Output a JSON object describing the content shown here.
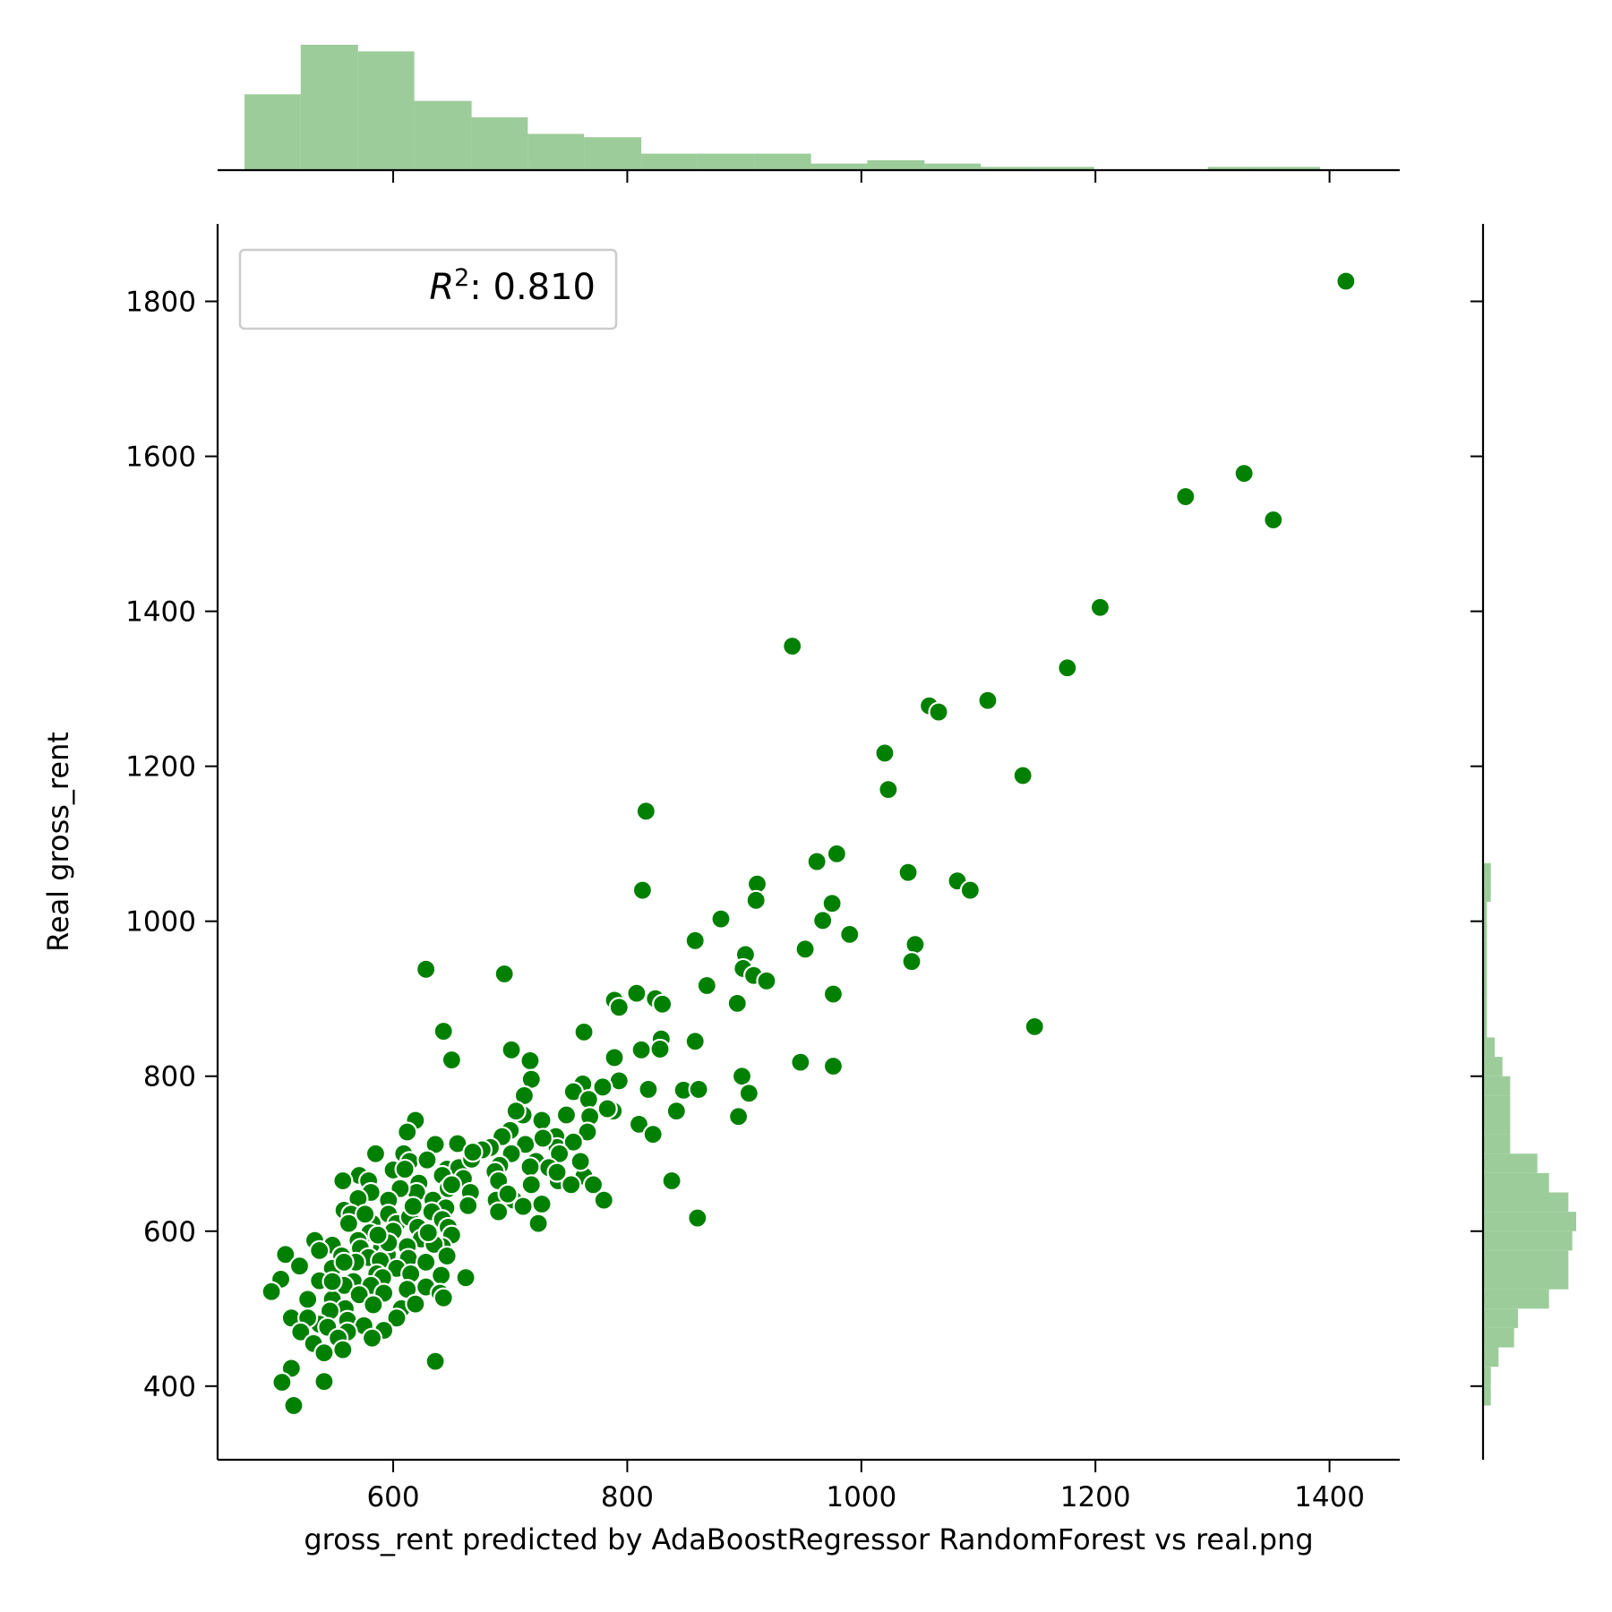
{
  "chart_data": {
    "type": "scatter",
    "style": "jointplot",
    "xlabel": "gross_rent predicted by AdaBoostRegressor RandomForest vs real.png",
    "ylabel": "Real gross_rent",
    "xlim": [
      450,
      1460
    ],
    "ylim": [
      305,
      1900
    ],
    "xticks": [
      600,
      800,
      1000,
      1200,
      1400
    ],
    "yticks": [
      400,
      600,
      800,
      1000,
      1200,
      1400,
      1600,
      1800
    ],
    "xtick_labels": [
      "600",
      "800",
      "1000",
      "1200",
      "1400"
    ],
    "ytick_labels": [
      "400",
      "600",
      "800",
      "1000",
      "1200",
      "1400",
      "1600",
      "1800"
    ],
    "legend": {
      "label_main": "R",
      "label_sup": "2",
      "label_rest": ": 0.810",
      "placement": "upper left"
    },
    "grid": false,
    "colors": {
      "points": "#008000",
      "point_edge": "#ffffff",
      "histogram": "#9ccc9a",
      "axes": "#000000"
    },
    "points": [
      [
        1414,
        1826
      ],
      [
        1327,
        1578
      ],
      [
        1352,
        1518
      ],
      [
        1277,
        1548
      ],
      [
        1204,
        1405
      ],
      [
        1176,
        1327
      ],
      [
        941,
        1355
      ],
      [
        1108,
        1285
      ],
      [
        1058,
        1278
      ],
      [
        1066,
        1270
      ],
      [
        1020,
        1217
      ],
      [
        1023,
        1170
      ],
      [
        1138,
        1188
      ],
      [
        816,
        1142
      ],
      [
        813,
        1040
      ],
      [
        979,
        1087
      ],
      [
        962,
        1077
      ],
      [
        1040,
        1063
      ],
      [
        1082,
        1052
      ],
      [
        1093,
        1040
      ],
      [
        975,
        1023
      ],
      [
        911,
        1048
      ],
      [
        910,
        1027
      ],
      [
        880,
        1003
      ],
      [
        967,
        1001
      ],
      [
        990,
        983
      ],
      [
        858,
        975
      ],
      [
        1046,
        970
      ],
      [
        952,
        964
      ],
      [
        901,
        957
      ],
      [
        1043,
        948
      ],
      [
        899,
        939
      ],
      [
        908,
        930
      ],
      [
        919,
        923
      ],
      [
        628,
        938
      ],
      [
        695,
        932
      ],
      [
        868,
        917
      ],
      [
        976,
        906
      ],
      [
        808,
        907
      ],
      [
        789,
        898
      ],
      [
        793,
        889
      ],
      [
        824,
        900
      ],
      [
        830,
        893
      ],
      [
        894,
        894
      ],
      [
        1148,
        864
      ],
      [
        643,
        858
      ],
      [
        763,
        857
      ],
      [
        829,
        848
      ],
      [
        858,
        845
      ],
      [
        812,
        834
      ],
      [
        828,
        835
      ],
      [
        701,
        834
      ],
      [
        717,
        820
      ],
      [
        650,
        821
      ],
      [
        789,
        824
      ],
      [
        948,
        818
      ],
      [
        976,
        813
      ],
      [
        718,
        796
      ],
      [
        762,
        790
      ],
      [
        793,
        794
      ],
      [
        898,
        800
      ],
      [
        818,
        783
      ],
      [
        848,
        782
      ],
      [
        861,
        783
      ],
      [
        754,
        780
      ],
      [
        779,
        786
      ],
      [
        904,
        778
      ],
      [
        712,
        775
      ],
      [
        767,
        770
      ],
      [
        788,
        755
      ],
      [
        842,
        755
      ],
      [
        895,
        748
      ],
      [
        810,
        738
      ],
      [
        822,
        725
      ],
      [
        768,
        748
      ],
      [
        748,
        750
      ],
      [
        711,
        750
      ],
      [
        705,
        755
      ],
      [
        619,
        743
      ],
      [
        727,
        743
      ],
      [
        612,
        728
      ],
      [
        739,
        722
      ],
      [
        700,
        730
      ],
      [
        713,
        712
      ],
      [
        693,
        722
      ],
      [
        636,
        712
      ],
      [
        655,
        713
      ],
      [
        683,
        708
      ],
      [
        740,
        708
      ],
      [
        766,
        728
      ],
      [
        754,
        715
      ],
      [
        742,
        700
      ],
      [
        701,
        700
      ],
      [
        609,
        700
      ],
      [
        585,
        700
      ],
      [
        614,
        690
      ],
      [
        646,
        680
      ],
      [
        656,
        682
      ],
      [
        722,
        690
      ],
      [
        691,
        685
      ],
      [
        667,
        693
      ],
      [
        629,
        692
      ],
      [
        717,
        683
      ],
      [
        600,
        679
      ],
      [
        610,
        680
      ],
      [
        571,
        672
      ],
      [
        687,
        677
      ],
      [
        733,
        682
      ],
      [
        660,
        668
      ],
      [
        642,
        672
      ],
      [
        579,
        665
      ],
      [
        557,
        665
      ],
      [
        622,
        662
      ],
      [
        647,
        655
      ],
      [
        690,
        665
      ],
      [
        741,
        665
      ],
      [
        763,
        671
      ],
      [
        771,
        660
      ],
      [
        718,
        660
      ],
      [
        620,
        650
      ],
      [
        666,
        650
      ],
      [
        581,
        650
      ],
      [
        752,
        660
      ],
      [
        838,
        665
      ],
      [
        606,
        655
      ],
      [
        634,
        640
      ],
      [
        596,
        640
      ],
      [
        570,
        642
      ],
      [
        558,
        627
      ],
      [
        645,
        630
      ],
      [
        688,
        640
      ],
      [
        703,
        640
      ],
      [
        727,
        635
      ],
      [
        780,
        640
      ],
      [
        564,
        622
      ],
      [
        596,
        622
      ],
      [
        633,
        625
      ],
      [
        664,
        633
      ],
      [
        690,
        625
      ],
      [
        711,
        632
      ],
      [
        724,
        610
      ],
      [
        860,
        617
      ],
      [
        582,
        610
      ],
      [
        603,
        610
      ],
      [
        614,
        618
      ],
      [
        642,
        615
      ],
      [
        562,
        610
      ],
      [
        621,
        605
      ],
      [
        647,
        605
      ],
      [
        580,
        598
      ],
      [
        600,
        600
      ],
      [
        650,
        595
      ],
      [
        533,
        588
      ],
      [
        548,
        582
      ],
      [
        570,
        588
      ],
      [
        624,
        590
      ],
      [
        642,
        580
      ],
      [
        572,
        578
      ],
      [
        590,
        578
      ],
      [
        612,
        580
      ],
      [
        635,
        583
      ],
      [
        595,
        570
      ],
      [
        508,
        570
      ],
      [
        537,
        575
      ],
      [
        556,
        568
      ],
      [
        579,
        566
      ],
      [
        613,
        565
      ],
      [
        646,
        568
      ],
      [
        589,
        562
      ],
      [
        568,
        560
      ],
      [
        628,
        560
      ],
      [
        603,
        552
      ],
      [
        520,
        555
      ],
      [
        548,
        552
      ],
      [
        586,
        545
      ],
      [
        615,
        545
      ],
      [
        641,
        543
      ],
      [
        662,
        540
      ],
      [
        591,
        540
      ],
      [
        537,
        536
      ],
      [
        566,
        535
      ],
      [
        558,
        530
      ],
      [
        504,
        538
      ],
      [
        581,
        530
      ],
      [
        628,
        528
      ],
      [
        612,
        525
      ],
      [
        640,
        520
      ],
      [
        571,
        518
      ],
      [
        548,
        512
      ],
      [
        527,
        512
      ],
      [
        592,
        520
      ],
      [
        643,
        514
      ],
      [
        496,
        522
      ],
      [
        559,
        500
      ],
      [
        583,
        505
      ],
      [
        607,
        500
      ],
      [
        546,
        497
      ],
      [
        619,
        506
      ],
      [
        513,
        488
      ],
      [
        537,
        480
      ],
      [
        561,
        485
      ],
      [
        575,
        478
      ],
      [
        603,
        488
      ],
      [
        527,
        488
      ],
      [
        544,
        476
      ],
      [
        592,
        472
      ],
      [
        521,
        470
      ],
      [
        561,
        470
      ],
      [
        553,
        462
      ],
      [
        582,
        462
      ],
      [
        532,
        455
      ],
      [
        557,
        447
      ],
      [
        541,
        443
      ],
      [
        513,
        423
      ],
      [
        636,
        432
      ],
      [
        505,
        405
      ],
      [
        541,
        406
      ],
      [
        515,
        375
      ],
      [
        548,
        535
      ],
      [
        596,
        585
      ],
      [
        587,
        595
      ],
      [
        630,
        598
      ],
      [
        617,
        632
      ],
      [
        576,
        622
      ],
      [
        558,
        560
      ],
      [
        676,
        705
      ],
      [
        650,
        660
      ],
      [
        760,
        690
      ],
      [
        728,
        720
      ],
      [
        698,
        648
      ],
      [
        668,
        702
      ],
      [
        740,
        676
      ],
      [
        783,
        758
      ]
    ],
    "x_marginal_hist": {
      "bin_edges": [
        473,
        521,
        570,
        618,
        667,
        715,
        763,
        812,
        860,
        909,
        957,
        1005,
        1054,
        1102,
        1150,
        1199,
        1247,
        1296,
        1344,
        1392,
        1441
      ],
      "counts": [
        23,
        38,
        36,
        21,
        16,
        11,
        10,
        5,
        5,
        5,
        2,
        3,
        2,
        1,
        1,
        0,
        0,
        1,
        1,
        0
      ]
    },
    "y_marginal_hist": {
      "bin_edges": [
        375,
        400,
        425,
        450,
        475,
        500,
        525,
        550,
        575,
        600,
        625,
        650,
        675,
        700,
        725,
        750,
        775,
        800,
        825,
        850,
        875,
        900,
        925,
        950,
        975,
        1000,
        1025,
        1050,
        1075
      ],
      "counts": [
        2,
        2,
        4,
        8,
        9,
        17,
        22,
        22,
        23,
        24,
        22,
        17,
        14,
        7,
        7,
        7,
        7,
        5,
        3,
        1,
        1,
        1,
        1,
        1,
        1,
        1,
        2,
        2
      ]
    }
  }
}
